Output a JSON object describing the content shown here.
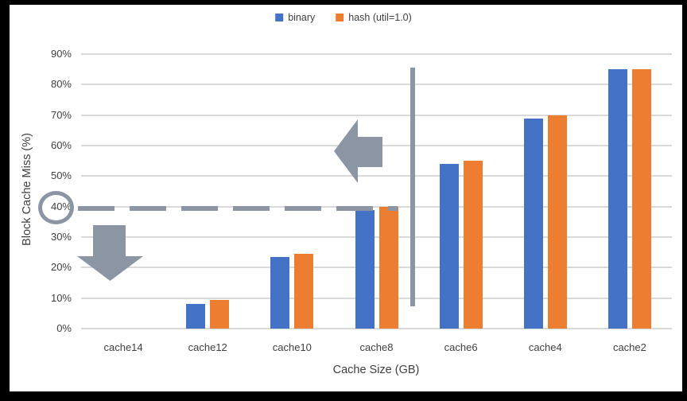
{
  "window": {
    "background_color": "#000000",
    "canvas_color": "#ffffff"
  },
  "chart_data": {
    "type": "bar",
    "title": "",
    "xlabel": "Cache Size (GB)",
    "ylabel": "Block Cache Miss (%)",
    "categories": [
      "cache14",
      "cache12",
      "cache10",
      "cache8",
      "cache6",
      "cache4",
      "cache2"
    ],
    "series": [
      {
        "key": "binary",
        "name": "binary",
        "color": "#4472c4",
        "values": [
          0,
          8,
          23.5,
          39,
          54,
          69,
          85
        ]
      },
      {
        "key": "hash",
        "name": "hash (util=1.0)",
        "color": "#ed7d31",
        "values": [
          0,
          9.5,
          24.5,
          40,
          55,
          70,
          85
        ]
      }
    ],
    "y_ticks": [
      "0%",
      "10%",
      "20%",
      "30%",
      "40%",
      "50%",
      "60%",
      "70%",
      "80%",
      "90%"
    ],
    "ylim": [
      0,
      90
    ],
    "grid": true,
    "gridline_color": "#d9d9d9",
    "text_color": "#404040",
    "legend_position": "top-center"
  },
  "annotations": {
    "color": "#8c95a3",
    "circled_y_tick_label": "40%",
    "dashed_threshold_line_at": "40%",
    "vertical_divider_between": [
      "cache8",
      "cache6"
    ],
    "arrows": [
      "left-arrow pointing at cache8 group",
      "down-arrow below 40% line on left side"
    ]
  }
}
